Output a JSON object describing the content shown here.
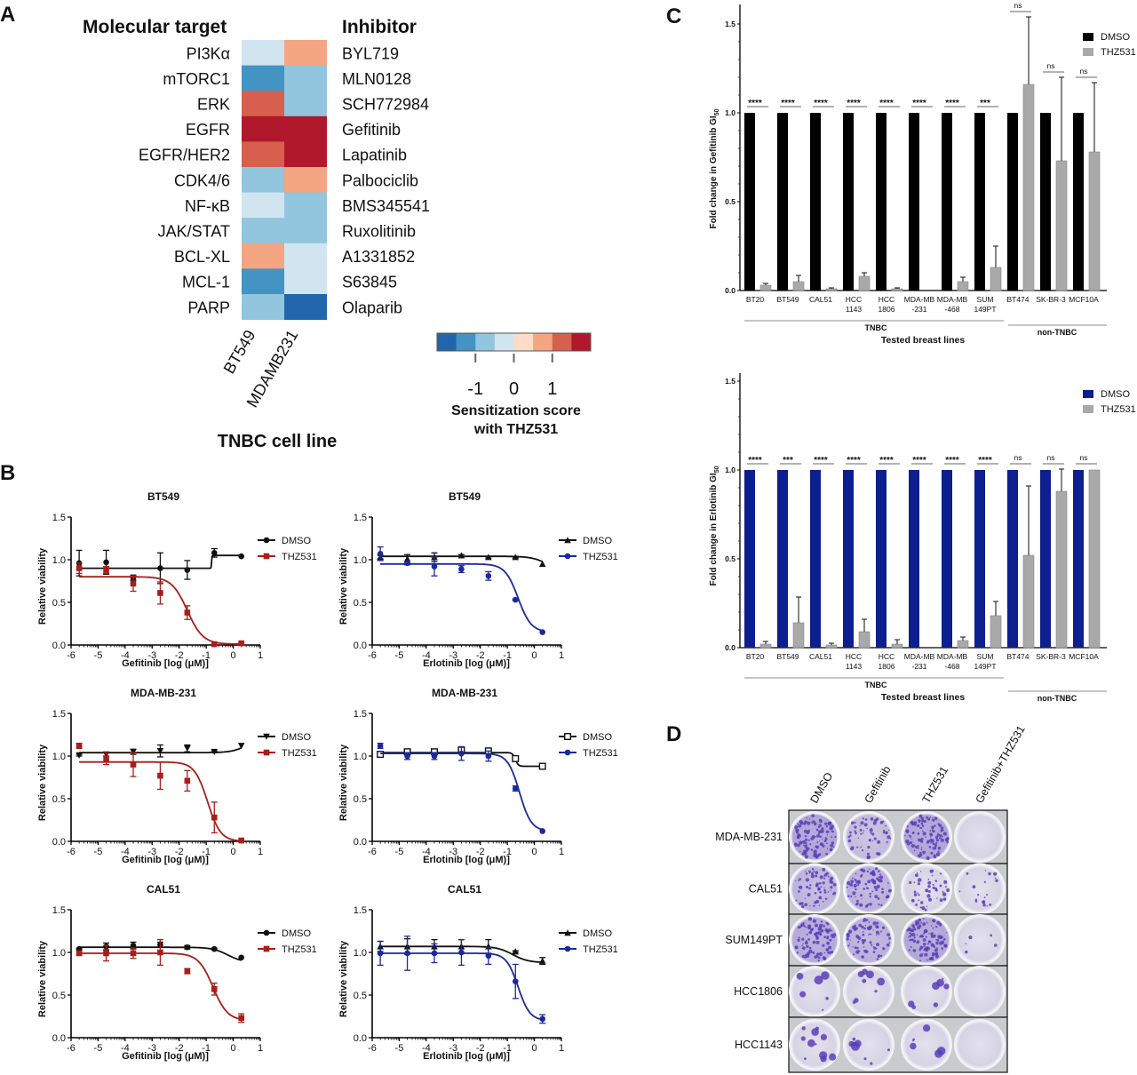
{
  "panel_labels": {
    "a": "A",
    "b": "B",
    "c": "C",
    "d": "D"
  },
  "chart_data": [
    {
      "type": "heatmap",
      "panel": "A",
      "row_header": "Molecular target",
      "inhibitor_header": "Inhibitor",
      "targets": [
        "PI3Kα",
        "mTORC1",
        "ERK",
        "EGFR",
        "EGFR/HER2",
        "CDK4/6",
        "NF-κB",
        "JAK/STAT",
        "BCL-XL",
        "MCL-1",
        "PARP"
      ],
      "inhibitors": [
        "BYL719",
        "MLN0128",
        "SCH772984",
        "Gefitinib",
        "Lapatinib",
        "Palbociclib",
        "BMS345541",
        "Ruxolitinib",
        "A1331852",
        "S63845",
        "Olaparib"
      ],
      "columns": [
        "BT549",
        "MDAMB231"
      ],
      "xlabel": "TNBC cell line",
      "values": [
        [
          -0.25,
          0.75
        ],
        [
          -1.25,
          -0.75
        ],
        [
          1.25,
          -0.75
        ],
        [
          1.75,
          1.75
        ],
        [
          1.25,
          1.75
        ],
        [
          -0.75,
          0.75
        ],
        [
          -0.25,
          -0.75
        ],
        [
          -0.75,
          -0.75
        ],
        [
          0.75,
          -0.25
        ],
        [
          -1.25,
          -0.25
        ],
        [
          -0.75,
          -1.75
        ]
      ],
      "colorbar": {
        "title_line1": "Sensitization score",
        "title_line2": "with THZ531",
        "range": [
          -2,
          2
        ],
        "ticks": [
          "-1",
          "0",
          "1"
        ],
        "tick_values": [
          -1,
          0,
          1
        ],
        "colors": [
          "#2166ac",
          "#4393c3",
          "#92c5de",
          "#d1e5f0",
          "#fddbc7",
          "#f4a582",
          "#d6604d",
          "#b2182b"
        ]
      }
    },
    {
      "type": "line",
      "panel": "B",
      "title": "BT549",
      "xlabel": "Gefitinib [log (μM)]",
      "ylabel": "Relative viability",
      "xlim": [
        -6,
        1
      ],
      "ylim": [
        0,
        1.5
      ],
      "xticks": [
        "-6",
        "-5",
        "-4",
        "-3",
        "-2",
        "-1",
        "0",
        "1"
      ],
      "yticks": [
        "0.0",
        "0.5",
        "1.0",
        "1.5"
      ],
      "x": [
        -5.7,
        -4.7,
        -3.7,
        -2.7,
        -1.7,
        -0.7,
        0.3
      ],
      "series": [
        {
          "name": "DMSO",
          "color": "#111111",
          "marker": "circle",
          "y": [
            0.96,
            0.97,
            0.79,
            0.9,
            0.88,
            1.08,
            1.04
          ],
          "err": [
            0.15,
            0.14,
            0.03,
            0.18,
            0.11,
            0.05,
            0
          ],
          "curve": {
            "top": 0.9,
            "bottom": 1.05,
            "logIC50": -0.8,
            "hill": 60
          }
        },
        {
          "name": "THZ531",
          "color": "#a81e1a",
          "marker": "square",
          "y": [
            0.9,
            0.88,
            0.72,
            0.61,
            0.38,
            0.01,
            0.02
          ],
          "err": [
            0.06,
            0.04,
            0.09,
            0.13,
            0.08,
            0,
            0.01
          ],
          "curve": {
            "top": 0.8,
            "bottom": 0.01,
            "logIC50": -1.7,
            "hill": 1.5
          }
        }
      ]
    },
    {
      "type": "line",
      "panel": "B",
      "title": "BT549",
      "xlabel": "Erlotinib [log (μM)]",
      "ylabel": "Relative viability",
      "xlim": [
        -6,
        1
      ],
      "ylim": [
        0,
        1.5
      ],
      "xticks": [
        "-6",
        "-5",
        "-4",
        "-3",
        "-2",
        "-1",
        "0",
        "1"
      ],
      "yticks": [
        "0.0",
        "0.5",
        "1.0",
        "1.5"
      ],
      "x": [
        -5.7,
        -4.7,
        -3.7,
        -2.7,
        -1.7,
        -0.7,
        0.3
      ],
      "series": [
        {
          "name": "DMSO",
          "color": "#111111",
          "marker": "triangle",
          "y": [
            1.03,
            1.01,
            1.03,
            1.05,
            1.03,
            1.03,
            0.95
          ],
          "err": [
            0.02,
            0.05,
            0.05,
            0.01,
            0.01,
            0.01,
            0
          ],
          "curve": {
            "top": 1.04,
            "bottom": 0.85,
            "logIC50": 0.5,
            "hill": 1.5
          }
        },
        {
          "name": "THZ531",
          "color": "#1a2a9c",
          "marker": "circle",
          "y": [
            1.07,
            0.96,
            0.92,
            0.89,
            0.81,
            0.53,
            0.15
          ],
          "err": [
            0.08,
            0.02,
            0.11,
            0.04,
            0.05,
            0.01,
            0
          ],
          "curve": {
            "top": 0.95,
            "bottom": 0.15,
            "logIC50": -0.6,
            "hill": 1.8
          }
        }
      ]
    },
    {
      "type": "line",
      "panel": "B",
      "title": "MDA-MB-231",
      "xlabel": "Gefitinib [log (μM)]",
      "ylabel": "Relative viability",
      "xlim": [
        -6,
        1
      ],
      "ylim": [
        0,
        1.5
      ],
      "xticks": [
        "-6",
        "-5",
        "-4",
        "-3",
        "-2",
        "-1",
        "0",
        "1"
      ],
      "yticks": [
        "0.0",
        "0.5",
        "1.0",
        "1.5"
      ],
      "x": [
        -5.7,
        -4.7,
        -3.7,
        -2.7,
        -1.7,
        -0.7,
        0.3
      ],
      "series": [
        {
          "name": "DMSO",
          "color": "#111111",
          "marker": "triangle-down",
          "y": [
            1.01,
            1.02,
            1.05,
            1.06,
            1.09,
            1.05,
            1.12
          ],
          "err": [
            0.01,
            0.02,
            0.03,
            0.07,
            0.04,
            0.01,
            0
          ],
          "curve": {
            "top": 1.04,
            "bottom": 1.25,
            "logIC50": 0.6,
            "hill": 1.5
          }
        },
        {
          "name": "THZ531",
          "color": "#a81e1a",
          "marker": "square",
          "y": [
            1.12,
            0.97,
            0.9,
            0.77,
            0.71,
            0.28,
            0.01
          ],
          "err": [
            0.03,
            0.07,
            0.14,
            0.16,
            0.12,
            0.18,
            0
          ],
          "curve": {
            "top": 0.93,
            "bottom": 0.0,
            "logIC50": -0.95,
            "hill": 1.8
          }
        }
      ]
    },
    {
      "type": "line",
      "panel": "B",
      "title": "MDA-MB-231",
      "xlabel": "Erlotinib [log (μM)]",
      "ylabel": "Relative viability",
      "xlim": [
        -6,
        1
      ],
      "ylim": [
        0,
        1.5
      ],
      "xticks": [
        "-6",
        "-5",
        "-4",
        "-3",
        "-2",
        "-1",
        "0",
        "1"
      ],
      "yticks": [
        "0.0",
        "0.5",
        "1.0",
        "1.5"
      ],
      "x": [
        -5.7,
        -4.7,
        -3.7,
        -2.7,
        -1.7,
        -0.7,
        0.3
      ],
      "series": [
        {
          "name": "DMSO",
          "color": "#111111",
          "marker": "square-open",
          "y": [
            1.02,
            1.05,
            1.05,
            1.07,
            1.06,
            0.97,
            0.88
          ],
          "err": [
            0.01,
            0.02,
            0.02,
            0.03,
            0.03,
            0.02,
            0
          ],
          "curve": {
            "top": 1.04,
            "bottom": 0.88,
            "logIC50": -0.7,
            "hill": 8
          }
        },
        {
          "name": "THZ531",
          "color": "#1a2a9c",
          "marker": "circle",
          "y": [
            1.12,
            1.0,
            1.0,
            1.03,
            1.0,
            0.62,
            0.12
          ],
          "err": [
            0.03,
            0.04,
            0.04,
            0.08,
            0.06,
            0.03,
            0
          ],
          "curve": {
            "top": 1.03,
            "bottom": 0.12,
            "logIC50": -0.55,
            "hill": 2
          }
        }
      ]
    },
    {
      "type": "line",
      "panel": "B",
      "title": "CAL51",
      "xlabel": "Gefitinib [log (μM)]",
      "ylabel": "Relative viability",
      "xlim": [
        -6,
        1
      ],
      "ylim": [
        0,
        1.5
      ],
      "xticks": [
        "-6",
        "-5",
        "-4",
        "-3",
        "-2",
        "-1",
        "0",
        "1"
      ],
      "yticks": [
        "0.0",
        "0.5",
        "1.0",
        "1.5"
      ],
      "x": [
        -5.7,
        -4.7,
        -3.7,
        -2.7,
        -1.7,
        -0.7,
        0.3
      ],
      "series": [
        {
          "name": "DMSO",
          "color": "#111111",
          "marker": "circle",
          "y": [
            1.04,
            1.07,
            1.08,
            1.09,
            1.06,
            1.04,
            0.94
          ],
          "err": [
            0.01,
            0.04,
            0.04,
            0.03,
            0.02,
            0.01,
            0
          ],
          "curve": {
            "top": 1.06,
            "bottom": 0.88,
            "logIC50": -0.2,
            "hill": 1.5
          }
        },
        {
          "name": "THZ531",
          "color": "#a81e1a",
          "marker": "square",
          "y": [
            0.99,
            0.99,
            0.99,
            1.0,
            0.78,
            0.57,
            0.23
          ],
          "err": [
            0.02,
            0.09,
            0.06,
            0.15,
            0.03,
            0.07,
            0.05
          ],
          "curve": {
            "top": 0.99,
            "bottom": 0.2,
            "logIC50": -0.75,
            "hill": 1.6
          }
        }
      ]
    },
    {
      "type": "line",
      "panel": "B",
      "title": "CAL51",
      "xlabel": "Erlotinib [log (μM)]",
      "ylabel": "Relative viability",
      "xlim": [
        -6,
        1
      ],
      "ylim": [
        0,
        1.5
      ],
      "xticks": [
        "-6",
        "-5",
        "-4",
        "-3",
        "-2",
        "-1",
        "0",
        "1"
      ],
      "yticks": [
        "0.0",
        "0.5",
        "1.0",
        "1.5"
      ],
      "x": [
        -5.7,
        -4.7,
        -3.7,
        -2.7,
        -1.7,
        -0.7,
        0.3
      ],
      "series": [
        {
          "name": "DMSO",
          "color": "#111111",
          "marker": "triangle",
          "y": [
            1.07,
            1.07,
            1.07,
            1.07,
            1.07,
            1.01,
            0.9
          ],
          "err": [
            0.06,
            0.09,
            0.08,
            0.08,
            0.08,
            0.01,
            0.04
          ],
          "curve": {
            "top": 1.07,
            "bottom": 0.88,
            "logIC50": -0.8,
            "hill": 1.5
          }
        },
        {
          "name": "THZ531",
          "color": "#1a2a9c",
          "marker": "circle",
          "y": [
            0.99,
            0.99,
            0.99,
            1.0,
            0.96,
            0.66,
            0.22
          ],
          "err": [
            0.14,
            0.2,
            0.11,
            0.15,
            0.1,
            0.2,
            0.05
          ],
          "curve": {
            "top": 0.99,
            "bottom": 0.2,
            "logIC50": -0.6,
            "hill": 2
          }
        }
      ]
    },
    {
      "type": "bar",
      "panel": "C",
      "ylabel": "Fold change in Gefitinib GI",
      "ylabel_sub": "50",
      "xlabel": "Tested breast lines",
      "ylim": [
        0,
        1.5
      ],
      "yticks": [
        "0.0",
        "0.5",
        "1.0",
        "1.5"
      ],
      "categories": [
        [
          "BT20"
        ],
        [
          "BT549"
        ],
        [
          "CAL51"
        ],
        [
          "HCC",
          "1143"
        ],
        [
          "HCC",
          "1806"
        ],
        [
          "MDA-MB",
          "-231"
        ],
        [
          "MDA-MB",
          "-468"
        ],
        [
          "SUM",
          "149PT"
        ],
        [
          "BT474"
        ],
        [
          "SK-BR-3"
        ],
        [
          "MCF10A"
        ]
      ],
      "groups": [
        {
          "label": "TNBC",
          "count": 8
        },
        {
          "label": "non-TNBC",
          "count": 3
        }
      ],
      "series": [
        {
          "name": "DMSO",
          "color": "#000000",
          "values": [
            1,
            1,
            1,
            1,
            1,
            1,
            1,
            1,
            1,
            1,
            1
          ]
        },
        {
          "name": "THZ531",
          "color": "#a9a9a9",
          "values": [
            0.03,
            0.05,
            0.01,
            0.08,
            0.01,
            0.0,
            0.05,
            0.13,
            1.16,
            0.73,
            0.78
          ],
          "err": [
            0.01,
            0.035,
            0.005,
            0.02,
            0.005,
            0,
            0.025,
            0.12,
            0.38,
            0.47,
            0.39
          ]
        }
      ],
      "significance": [
        "****",
        "****",
        "****",
        "****",
        "****",
        "****",
        "****",
        "***",
        "ns",
        "ns",
        "ns"
      ]
    },
    {
      "type": "bar",
      "panel": "C",
      "ylabel": "Fold change in Erlotinib GI",
      "ylabel_sub": "50",
      "xlabel": "Tested breast lines",
      "ylim": [
        0,
        1.5
      ],
      "yticks": [
        "0.0",
        "0.5",
        "1.0",
        "1.5"
      ],
      "categories": [
        [
          "BT20"
        ],
        [
          "BT549"
        ],
        [
          "CAL51"
        ],
        [
          "HCC",
          "1143"
        ],
        [
          "HCC",
          "1806"
        ],
        [
          "MDA-MB",
          "-231"
        ],
        [
          "MDA-MB",
          "-468"
        ],
        [
          "SUM",
          "149PT"
        ],
        [
          "BT474"
        ],
        [
          "SK-BR-3"
        ],
        [
          "MCF10A"
        ]
      ],
      "groups": [
        {
          "label": "TNBC",
          "count": 8
        },
        {
          "label": "non-TNBC",
          "count": 3
        }
      ],
      "series": [
        {
          "name": "DMSO",
          "color": "#0d1f8f",
          "values": [
            1,
            1,
            1,
            1,
            1,
            1,
            1,
            1,
            1,
            1,
            1
          ]
        },
        {
          "name": "THZ531",
          "color": "#a9a9a9",
          "values": [
            0.02,
            0.14,
            0.015,
            0.09,
            0.02,
            0.0,
            0.04,
            0.18,
            0.52,
            0.88,
            1.0
          ],
          "err": [
            0.015,
            0.145,
            0.01,
            0.07,
            0.025,
            0,
            0.02,
            0.08,
            0.39,
            0.125,
            0
          ]
        }
      ],
      "significance": [
        "****",
        "***",
        "****",
        "****",
        "****",
        "****",
        "****",
        "****",
        "ns",
        "ns",
        "ns"
      ]
    }
  ],
  "colony_assay": {
    "columns": [
      "DMSO",
      "Gefitinib",
      "THZ531",
      "Gefitinib+THZ531"
    ],
    "rows": [
      "MDA-MB-231",
      "CAL51",
      "SUM149PT",
      "HCC1806",
      "HCC1143"
    ],
    "stain_color": "#5a3fb8"
  }
}
